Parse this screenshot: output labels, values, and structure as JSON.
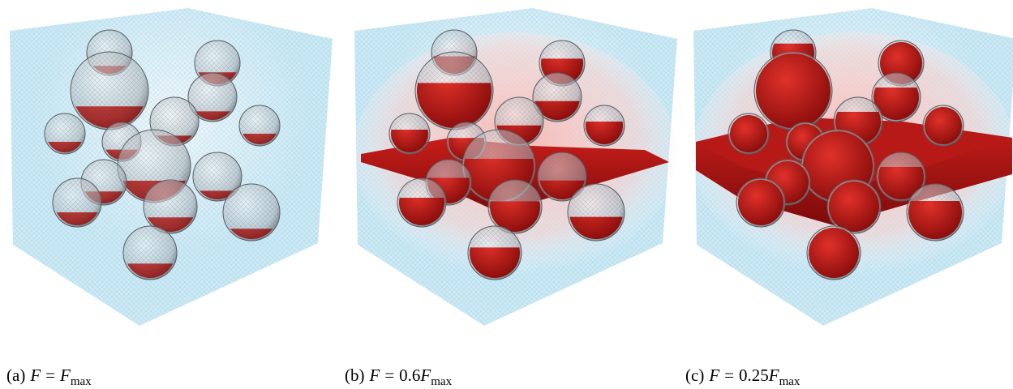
{
  "panels": [
    {
      "label": "(a)",
      "var": "F",
      "rel": "=",
      "rhs_var": "F",
      "sub": "max"
    },
    {
      "label": "(b)",
      "var": "F",
      "rel": "=",
      "rhs_coef": "0.6",
      "rhs_var": "F",
      "sub": "max"
    },
    {
      "label": "(c)",
      "var": "F",
      "rel": "=",
      "rhs_coef": "0.25",
      "rhs_var": "F",
      "sub": "max"
    }
  ]
}
